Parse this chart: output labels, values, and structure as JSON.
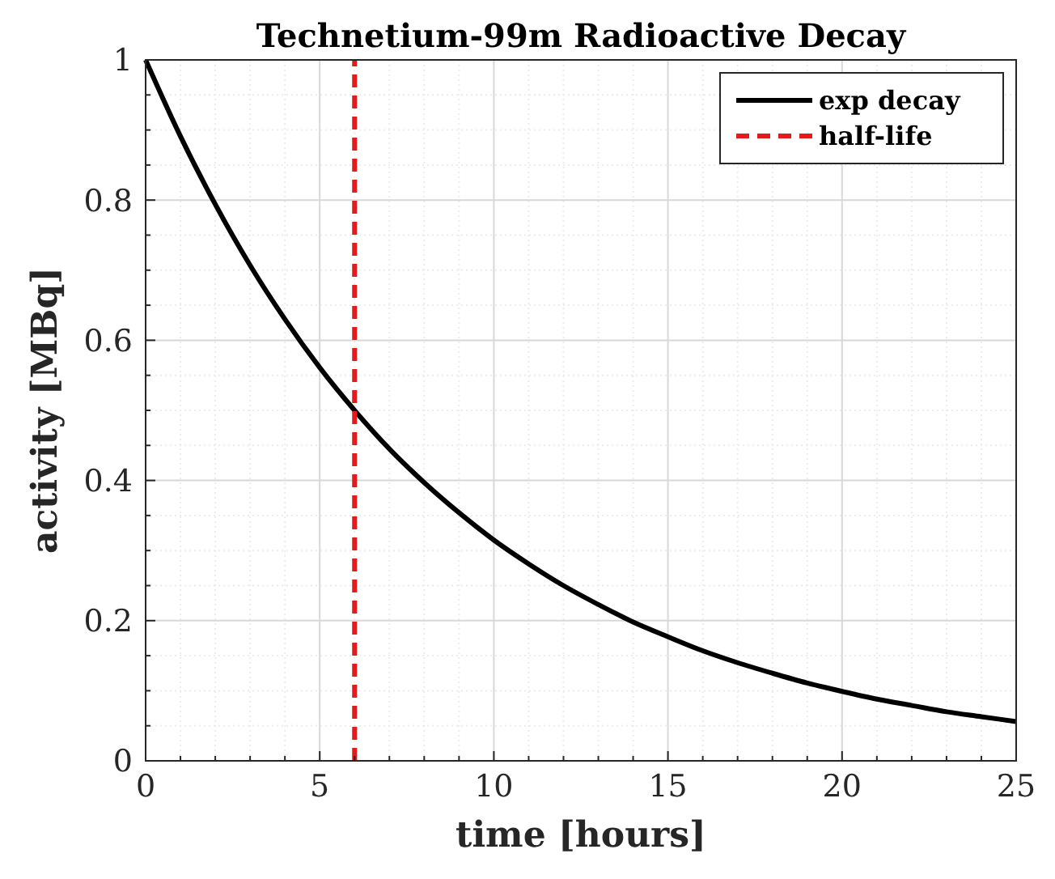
{
  "chart_data": {
    "type": "line",
    "title": "Technetium-99m Radioactive Decay",
    "xlabel": "time [hours]",
    "ylabel": "activity [MBq]",
    "x": [
      0,
      1,
      2,
      3,
      4,
      5,
      6,
      7,
      8,
      9,
      10,
      11,
      12,
      13,
      14,
      15,
      16,
      17,
      18,
      19,
      20,
      21,
      22,
      23,
      24,
      25
    ],
    "series": [
      {
        "name": "exp decay",
        "color": "#000000",
        "values": [
          1,
          0.891,
          0.794,
          0.707,
          0.63,
          0.561,
          0.5,
          0.445,
          0.397,
          0.354,
          0.315,
          0.281,
          0.25,
          0.223,
          0.198,
          0.177,
          0.157,
          0.14,
          0.125,
          0.111,
          0.099,
          0.088,
          0.079,
          0.07,
          0.063,
          0.056
        ]
      },
      {
        "name": "half-life",
        "color": "#e41a1c",
        "line_style": "dashed",
        "x": [
          6,
          6
        ],
        "values": [
          0,
          1
        ]
      }
    ],
    "xlim": [
      0,
      25
    ],
    "xticks": [
      0,
      {
        "value": 1,
        "label": null
      },
      {
        "value": 2,
        "label": null
      },
      {
        "value": 3,
        "label": null
      },
      {
        "value": 4,
        "label": null
      },
      5,
      {
        "value": 6,
        "label": null
      },
      {
        "value": 7,
        "label": null
      },
      {
        "value": 8,
        "label": null
      },
      {
        "value": 9,
        "label": null
      },
      10,
      {
        "value": 11,
        "label": null
      },
      {
        "value": 12,
        "label": null
      },
      {
        "value": 13,
        "label": null
      },
      {
        "value": 14,
        "label": null
      },
      15,
      {
        "value": 16,
        "label": null
      },
      {
        "value": 17,
        "label": null
      },
      {
        "value": 18,
        "label": null
      },
      {
        "value": 19,
        "label": null
      },
      20,
      {
        "value": 21,
        "label": null
      },
      {
        "value": 22,
        "label": null
      },
      {
        "value": 23,
        "label": null
      },
      {
        "value": 24,
        "label": null
      },
      25
    ],
    "ylim": [
      0,
      1
    ],
    "yticks": [
      0,
      {
        "value": 0.05,
        "label": null
      },
      {
        "value": 0.1,
        "label": null
      },
      {
        "value": 0.15,
        "label": null
      },
      0.2,
      {
        "value": 0.25,
        "label": null
      },
      {
        "value": 0.3,
        "label": null
      },
      {
        "value": 0.35,
        "label": null
      },
      0.4,
      {
        "value": 0.45,
        "label": null
      },
      {
        "value": 0.5,
        "label": null
      },
      {
        "value": 0.55,
        "label": null
      },
      0.6,
      {
        "value": 0.65,
        "label": null
      },
      {
        "value": 0.7,
        "label": null
      },
      {
        "value": 0.75,
        "label": null
      },
      0.8,
      {
        "value": 0.85,
        "label": null
      },
      {
        "value": 0.9,
        "label": null
      },
      {
        "value": 0.95,
        "label": null
      },
      1
    ],
    "grid": true,
    "legend": "top right",
    "line_style": "solid",
    "marker": "none"
  }
}
